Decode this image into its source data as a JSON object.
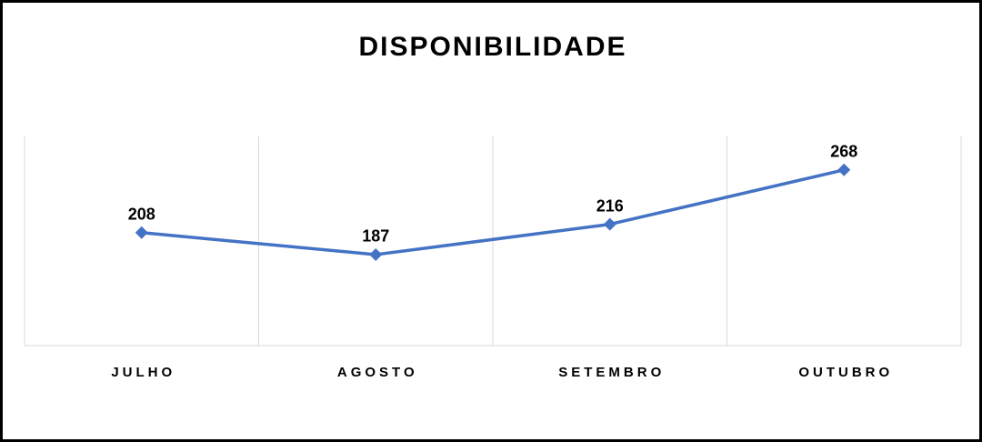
{
  "chart_data": {
    "type": "line",
    "title": "DISPONIBILIDADE",
    "categories": [
      "JULHO",
      "AGOSTO",
      "SETEMBRO",
      "OUTUBRO"
    ],
    "values": [
      208,
      187,
      216,
      268
    ],
    "color": "#4472c4",
    "ylim": [
      100,
      300
    ]
  }
}
